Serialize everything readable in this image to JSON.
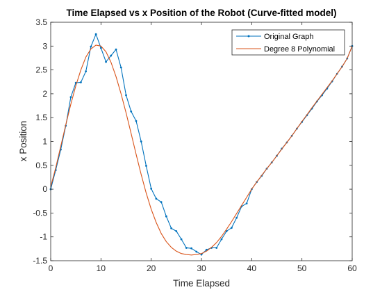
{
  "chart_data": {
    "type": "line",
    "title": "Time Elapsed vs x Position of the Robot (Curve-fitted model)",
    "xlabel": "Time Elapsed",
    "ylabel": "x Position",
    "xlim": [
      0,
      60
    ],
    "ylim": [
      -1.5,
      3.5
    ],
    "xticks": [
      0,
      10,
      20,
      30,
      40,
      50,
      60
    ],
    "yticks": [
      -1.5,
      -1,
      -0.5,
      0,
      0.5,
      1,
      1.5,
      2,
      2.5,
      3,
      3.5
    ],
    "xtick_labels": [
      "0",
      "10",
      "20",
      "30",
      "40",
      "50",
      "60"
    ],
    "ytick_labels": [
      "-1.5",
      "-1",
      "-0.5",
      "0",
      "0.5",
      "1",
      "1.5",
      "2",
      "2.5",
      "3",
      "3.5"
    ],
    "grid": false,
    "legend_position": "top-right",
    "series": [
      {
        "name": "Original Graph",
        "color": "#0072BD",
        "marker": "point",
        "x": [
          0,
          1,
          2,
          3,
          4,
          5,
          6,
          7,
          8,
          9,
          10,
          11,
          12,
          13,
          14,
          15,
          16,
          17,
          18,
          19,
          20,
          21,
          22,
          23,
          24,
          25,
          26,
          27,
          28,
          29,
          30,
          31,
          32,
          33,
          34,
          35,
          36,
          37,
          38,
          39,
          40,
          41,
          42,
          43,
          44,
          45,
          46,
          47,
          48,
          49,
          50,
          51,
          52,
          53,
          54,
          55,
          56,
          57,
          58,
          59,
          60
        ],
        "y": [
          0.0,
          0.4,
          0.83,
          1.33,
          1.93,
          2.23,
          2.24,
          2.47,
          2.99,
          3.25,
          2.96,
          2.67,
          2.8,
          2.93,
          2.55,
          1.97,
          1.63,
          1.43,
          1.0,
          0.49,
          0.01,
          -0.2,
          -0.27,
          -0.57,
          -0.82,
          -0.88,
          -1.05,
          -1.23,
          -1.24,
          -1.31,
          -1.37,
          -1.27,
          -1.23,
          -1.23,
          -1.05,
          -0.88,
          -0.81,
          -0.6,
          -0.36,
          -0.3,
          0.0,
          0.15,
          0.28,
          0.43,
          0.56,
          0.7,
          0.85,
          0.98,
          1.12,
          1.27,
          1.41,
          1.55,
          1.69,
          1.84,
          1.97,
          2.11,
          2.26,
          2.42,
          2.57,
          2.74,
          3.0
        ]
      },
      {
        "name": "Degree 8 Polynomial",
        "color": "#D95319",
        "marker": "none",
        "x": [
          0,
          1,
          2,
          3,
          4,
          5,
          6,
          7,
          8,
          9,
          10,
          11,
          12,
          13,
          14,
          15,
          16,
          17,
          18,
          19,
          20,
          21,
          22,
          23,
          24,
          25,
          26,
          27,
          28,
          29,
          30,
          31,
          32,
          33,
          34,
          35,
          36,
          37,
          38,
          39,
          40,
          41,
          42,
          43,
          44,
          45,
          46,
          47,
          48,
          49,
          50,
          51,
          52,
          53,
          54,
          55,
          56,
          57,
          58,
          59,
          60
        ],
        "y": [
          0.05,
          0.45,
          0.9,
          1.35,
          1.78,
          2.17,
          2.5,
          2.77,
          2.94,
          3.02,
          3.0,
          2.88,
          2.66,
          2.36,
          2.0,
          1.6,
          1.17,
          0.73,
          0.31,
          -0.08,
          -0.42,
          -0.7,
          -0.93,
          -1.1,
          -1.22,
          -1.3,
          -1.35,
          -1.37,
          -1.38,
          -1.37,
          -1.35,
          -1.3,
          -1.22,
          -1.12,
          -0.99,
          -0.84,
          -0.68,
          -0.51,
          -0.34,
          -0.17,
          0.0,
          0.15,
          0.29,
          0.43,
          0.56,
          0.7,
          0.84,
          0.98,
          1.12,
          1.27,
          1.42,
          1.56,
          1.71,
          1.85,
          1.99,
          2.13,
          2.27,
          2.42,
          2.57,
          2.74,
          3.0
        ]
      }
    ]
  }
}
